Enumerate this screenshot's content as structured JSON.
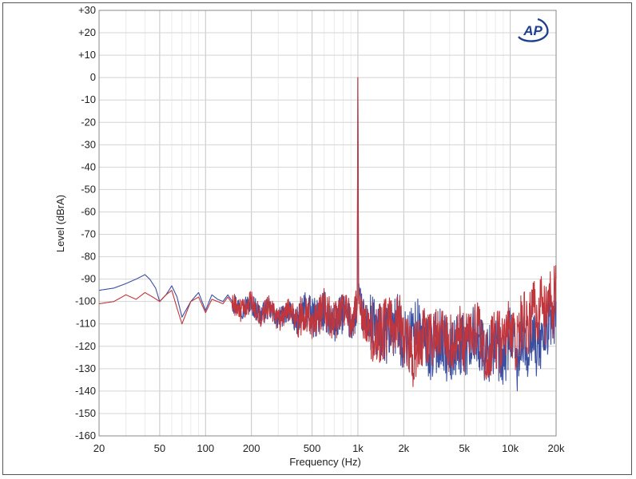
{
  "logo": {
    "text": "AP",
    "color": "#1f3f8f"
  },
  "chart_data": {
    "type": "line",
    "title": "",
    "xlabel": "Frequency (Hz)",
    "ylabel": "Level (dBrA)",
    "xscale": "log",
    "xlim": [
      20,
      20000
    ],
    "ylim": [
      -160,
      30
    ],
    "grid": true,
    "x_ticks": [
      {
        "v": 20,
        "label": "20"
      },
      {
        "v": 50,
        "label": "50"
      },
      {
        "v": 100,
        "label": "100"
      },
      {
        "v": 200,
        "label": "200"
      },
      {
        "v": 500,
        "label": "500"
      },
      {
        "v": 1000,
        "label": "1k"
      },
      {
        "v": 2000,
        "label": "2k"
      },
      {
        "v": 5000,
        "label": "5k"
      },
      {
        "v": 10000,
        "label": "10k"
      },
      {
        "v": 20000,
        "label": "20k"
      }
    ],
    "y_ticks": [
      {
        "v": 30,
        "label": "+30"
      },
      {
        "v": 20,
        "label": "+20"
      },
      {
        "v": 10,
        "label": "+10"
      },
      {
        "v": 0,
        "label": "0"
      },
      {
        "v": -10,
        "label": "-10"
      },
      {
        "v": -20,
        "label": "-20"
      },
      {
        "v": -30,
        "label": "-30"
      },
      {
        "v": -40,
        "label": "-40"
      },
      {
        "v": -50,
        "label": "-50"
      },
      {
        "v": -60,
        "label": "-60"
      },
      {
        "v": -70,
        "label": "-70"
      },
      {
        "v": -80,
        "label": "-80"
      },
      {
        "v": -90,
        "label": "-90"
      },
      {
        "v": -100,
        "label": "-100"
      },
      {
        "v": -110,
        "label": "-110"
      },
      {
        "v": -120,
        "label": "-120"
      },
      {
        "v": -130,
        "label": "-130"
      },
      {
        "v": -140,
        "label": "-140"
      },
      {
        "v": -150,
        "label": "-150"
      },
      {
        "v": -160,
        "label": "-160"
      }
    ],
    "series": [
      {
        "color": "#3b4fa0",
        "x": [
          20,
          25,
          30,
          35,
          40,
          43,
          47,
          50,
          55,
          60,
          65,
          70,
          80,
          90,
          100,
          110,
          120,
          130,
          140,
          150,
          170,
          200,
          230,
          260,
          300,
          350,
          400,
          450,
          500,
          600,
          700,
          800,
          900,
          960,
          990,
          1000,
          1010,
          1040,
          1100,
          1300,
          1500,
          1800,
          2000,
          2500,
          3000,
          3500,
          4000,
          4500,
          5000,
          6000,
          7000,
          8000,
          9000,
          10000,
          11000,
          12000,
          13000,
          14000,
          15000,
          16000,
          17000,
          18000,
          19000,
          20000
        ],
        "y": [
          -95,
          -94,
          -92,
          -90,
          -88,
          -90,
          -94,
          -100,
          -97,
          -93,
          -98,
          -107,
          -100,
          -96,
          -104,
          -97,
          -99,
          -100,
          -97,
          -100,
          -103,
          -101,
          -106,
          -103,
          -108,
          -104,
          -110,
          -103,
          -108,
          -104,
          -110,
          -105,
          -109,
          -106,
          -100,
          0,
          -98,
          -103,
          -108,
          -112,
          -115,
          -110,
          -118,
          -112,
          -122,
          -115,
          -125,
          -118,
          -120,
          -115,
          -125,
          -118,
          -130,
          -112,
          -128,
          -118,
          -122,
          -110,
          -125,
          -115,
          -120,
          -105,
          -112,
          -100
        ]
      },
      {
        "color": "#c0363c",
        "x": [
          20,
          25,
          30,
          35,
          40,
          45,
          50,
          55,
          60,
          65,
          70,
          80,
          90,
          100,
          110,
          120,
          130,
          140,
          150,
          170,
          200,
          230,
          260,
          300,
          350,
          400,
          450,
          500,
          600,
          700,
          800,
          900,
          960,
          990,
          1000,
          1010,
          1040,
          1100,
          1300,
          1500,
          1800,
          2000,
          2300,
          2500,
          3000,
          3500,
          4000,
          4500,
          5000,
          6000,
          7000,
          8000,
          9000,
          10000,
          11000,
          12000,
          13000,
          14000,
          15000,
          16000,
          17000,
          18000,
          19000,
          20000
        ],
        "y": [
          -101,
          -100,
          -97,
          -99,
          -96,
          -98,
          -100,
          -97,
          -95,
          -103,
          -110,
          -100,
          -98,
          -105,
          -99,
          -100,
          -101,
          -98,
          -101,
          -104,
          -100,
          -107,
          -102,
          -109,
          -103,
          -108,
          -104,
          -110,
          -103,
          -109,
          -104,
          -108,
          -105,
          -101,
          0,
          -99,
          -104,
          -110,
          -114,
          -113,
          -108,
          -115,
          -125,
          -116,
          -118,
          -112,
          -120,
          -114,
          -118,
          -112,
          -122,
          -116,
          -120,
          -110,
          -118,
          -105,
          -115,
          -100,
          -110,
          -98,
          -108,
          -95,
          -104,
          -90
        ]
      }
    ]
  }
}
